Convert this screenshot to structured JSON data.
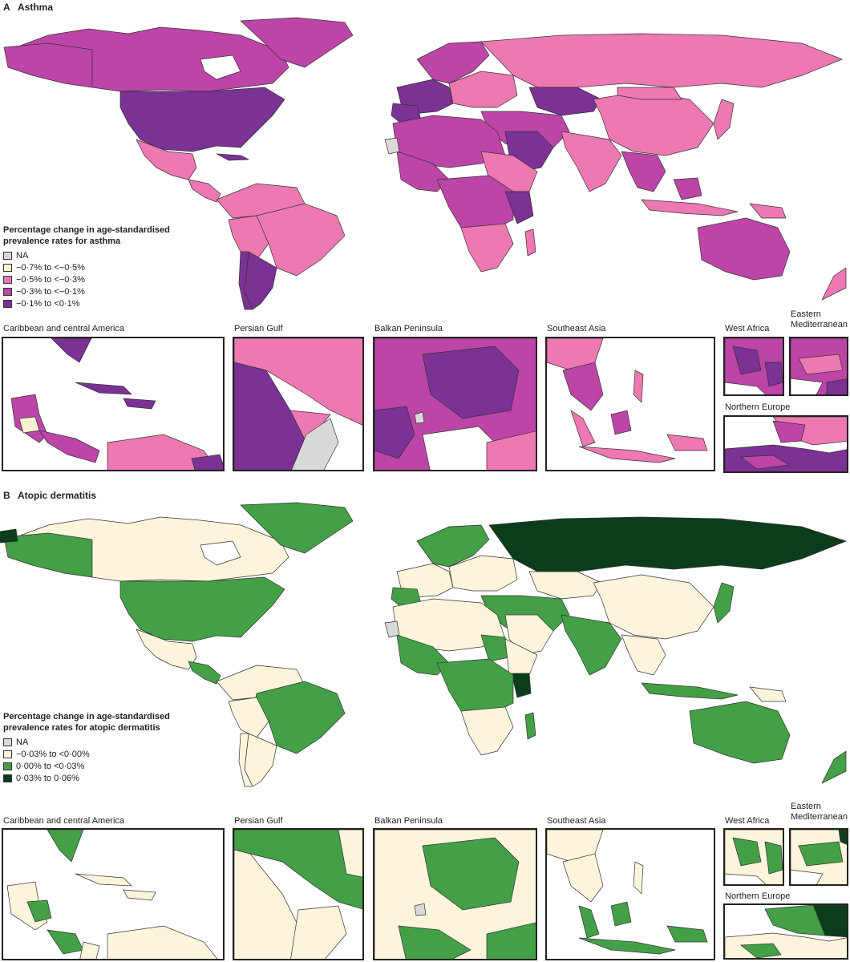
{
  "colors": {
    "na": "#d9d9d9",
    "asthma_1": "#fbf3d0",
    "asthma_2": "#ee78b2",
    "asthma_3": "#bd45a7",
    "asthma_4": "#7b3294",
    "ad_1": "#fdf4dc",
    "ad_2": "#43a047",
    "ad_3": "#0b3d1c",
    "outline": "#333333"
  },
  "panels": [
    {
      "letter": "A",
      "title": "Asthma",
      "legend": {
        "title": "Percentage change in age-standardised prevalence rates for asthma",
        "items": [
          {
            "label": "NA",
            "color": "#d9d9d9"
          },
          {
            "label": "−0·7% to <−0·5%",
            "color": "#fbf3d0"
          },
          {
            "label": "−0·5% to <−0·3%",
            "color": "#ee78b2"
          },
          {
            "label": "−0·3% to <−0·1%",
            "color": "#bd45a7"
          },
          {
            "label": "−0·1% to <0·1%",
            "color": "#7b3294"
          }
        ]
      },
      "insets": {
        "caribbean": "Caribbean and central America",
        "persian_gulf": "Persian Gulf",
        "balkan": "Balkan Peninsula",
        "southeast_asia": "Southeast Asia",
        "west_africa": "West Africa",
        "eastern_med": "Eastern Mediterranean",
        "northern_europe": "Northern Europe"
      }
    },
    {
      "letter": "B",
      "title": "Atopic dermatitis",
      "legend": {
        "title": "Percentage change in age-standardised prevalence rates for atopic dermatitis",
        "items": [
          {
            "label": "NA",
            "color": "#d9d9d9"
          },
          {
            "label": "−0·03% to <0·00%",
            "color": "#fdf4dc"
          },
          {
            "label": "0·00% to <0·03%",
            "color": "#43a047"
          },
          {
            "label": "0·03% to 0·06%",
            "color": "#0b3d1c"
          }
        ]
      },
      "insets": {
        "caribbean": "Caribbean and central America",
        "persian_gulf": "Persian Gulf",
        "balkan": "Balkan Peninsula",
        "southeast_asia": "Southeast Asia",
        "west_africa": "West Africa",
        "eastern_med": "Eastern Mediterranean",
        "northern_europe": "Northern Europe"
      }
    }
  ]
}
